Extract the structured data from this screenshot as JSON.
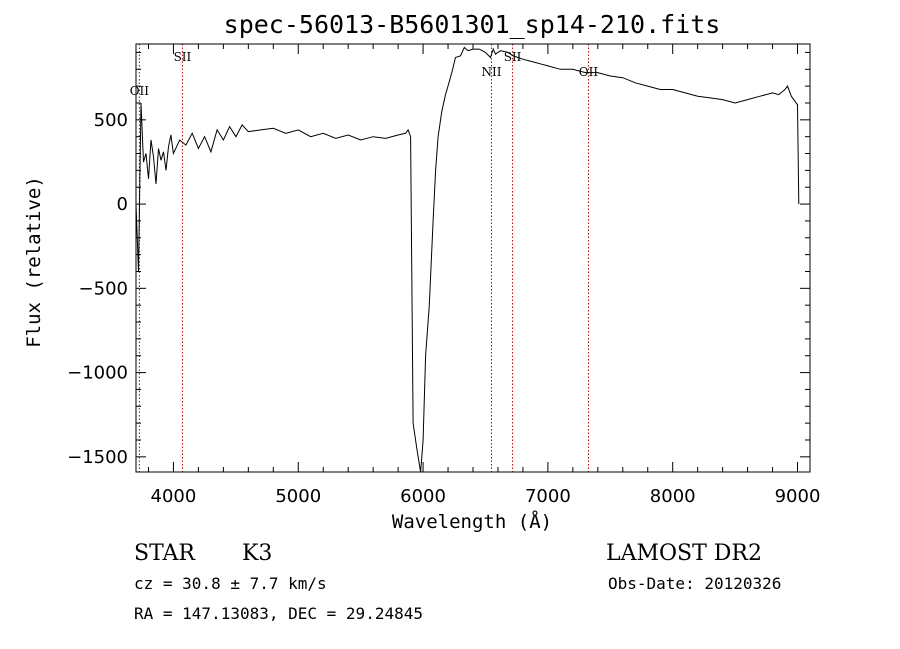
{
  "chart_data": {
    "type": "line",
    "title": "spec-56013-B5601301_sp14-210.fits",
    "xlabel": "Wavelength (Å)",
    "ylabel": "Flux (relative)",
    "xlim": [
      3700,
      9100
    ],
    "ylim": [
      -1590,
      950
    ],
    "xticks": [
      4000,
      5000,
      6000,
      7000,
      8000,
      9000
    ],
    "yticks": [
      500,
      0,
      -500,
      -1000,
      -1500
    ],
    "x_tick_labels": [
      "4000",
      "5000",
      "6000",
      "7000",
      "8000",
      "9000"
    ],
    "y_tick_labels": [
      "500",
      "0",
      "−500",
      "−1000",
      "−1500"
    ],
    "series": [
      {
        "x": [
          3700,
          3720,
          3740,
          3760,
          3780,
          3800,
          3820,
          3840,
          3860,
          3880,
          3900,
          3920,
          3940,
          3960,
          3980,
          4000,
          4050,
          4100,
          4150,
          4200,
          4250,
          4300,
          4350,
          4400,
          4450,
          4500,
          4550,
          4600,
          4700,
          4800,
          4900,
          5000,
          5100,
          5200,
          5300,
          5400,
          5500,
          5600,
          5700,
          5800,
          5860,
          5880,
          5900,
          5920,
          5950,
          5980,
          5990,
          6000,
          6020,
          6050,
          6080,
          6100,
          6120,
          6150,
          6180,
          6200,
          6230,
          6260,
          6300,
          6330,
          6360,
          6400,
          6450,
          6500,
          6540,
          6562,
          6580,
          6620,
          6680,
          6720,
          6760,
          6800,
          6850,
          6900,
          6950,
          7000,
          7100,
          7200,
          7300,
          7400,
          7500,
          7600,
          7700,
          7800,
          7900,
          8000,
          8100,
          8200,
          8300,
          8400,
          8500,
          8600,
          8700,
          8800,
          8850,
          8900,
          8920,
          8950,
          8980,
          9000,
          9010
        ],
        "y": [
          0,
          -400,
          600,
          250,
          300,
          150,
          380,
          280,
          120,
          330,
          260,
          310,
          200,
          340,
          410,
          300,
          380,
          350,
          420,
          330,
          400,
          310,
          440,
          380,
          460,
          400,
          470,
          430,
          440,
          450,
          420,
          440,
          400,
          420,
          390,
          410,
          380,
          400,
          390,
          410,
          420,
          440,
          400,
          -1300,
          -1450,
          -1590,
          -1500,
          -1400,
          -900,
          -600,
          -100,
          200,
          400,
          550,
          650,
          700,
          780,
          870,
          880,
          930,
          910,
          920,
          920,
          900,
          870,
          920,
          890,
          910,
          900,
          880,
          870,
          860,
          850,
          840,
          830,
          820,
          800,
          800,
          780,
          780,
          760,
          750,
          720,
          700,
          680,
          680,
          660,
          640,
          630,
          620,
          600,
          620,
          640,
          660,
          650,
          680,
          700,
          640,
          610,
          590,
          0
        ]
      }
    ],
    "line_markers": [
      {
        "label": "OII",
        "wavelength": 3727
      },
      {
        "label": "SII",
        "wavelength": 4072
      },
      {
        "label": "NII",
        "wavelength": 6548
      },
      {
        "label": "SII",
        "wavelength": 6717
      },
      {
        "label": "OII",
        "wavelength": 7325
      }
    ],
    "marker_color": "#c00000",
    "grid": false
  },
  "info": {
    "object_class": "STAR",
    "subclass": "K3",
    "survey": "LAMOST DR2",
    "cz": "cz = 30.8 ± 7.7 km/s",
    "obs_date": "Obs-Date: 20120326",
    "coords": "RA = 147.13083, DEC =  29.24845"
  }
}
